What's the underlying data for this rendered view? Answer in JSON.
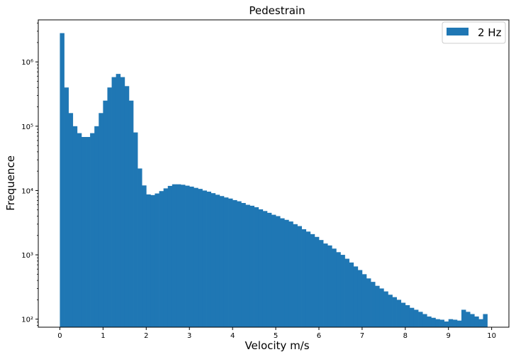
{
  "chart_data": {
    "type": "bar",
    "title": "Pedestrain",
    "xlabel": "Velocity m/s",
    "ylabel": "Frequence",
    "yscale": "log",
    "xlim": [
      -0.5,
      10.4
    ],
    "ylim": [
      75,
      4500000
    ],
    "xticks": [
      0,
      1,
      2,
      3,
      4,
      5,
      6,
      7,
      8,
      9,
      10
    ],
    "xtick_labels": [
      "0",
      "1",
      "2",
      "3",
      "4",
      "5",
      "6",
      "7",
      "8",
      "9",
      "10"
    ],
    "yticks": [
      100,
      1000,
      10000,
      100000,
      1000000
    ],
    "ytick_labels": [
      "10²",
      "10³",
      "10⁴",
      "10⁵",
      "10⁶"
    ],
    "grid": false,
    "legend_position": "top-right",
    "bin_width": 0.1,
    "series": [
      {
        "name": "2 Hz",
        "color": "#1f77b4",
        "bin_starts": [
          0.0,
          0.1,
          0.2,
          0.3,
          0.4,
          0.5,
          0.6,
          0.7,
          0.8,
          0.9,
          1.0,
          1.1,
          1.2,
          1.3,
          1.4,
          1.5,
          1.6,
          1.7,
          1.8,
          1.9,
          2.0,
          2.1,
          2.2,
          2.3,
          2.4,
          2.5,
          2.6,
          2.7,
          2.8,
          2.9,
          3.0,
          3.1,
          3.2,
          3.3,
          3.4,
          3.5,
          3.6,
          3.7,
          3.8,
          3.9,
          4.0,
          4.1,
          4.2,
          4.3,
          4.4,
          4.5,
          4.6,
          4.7,
          4.8,
          4.9,
          5.0,
          5.1,
          5.2,
          5.3,
          5.4,
          5.5,
          5.6,
          5.7,
          5.8,
          5.9,
          6.0,
          6.1,
          6.2,
          6.3,
          6.4,
          6.5,
          6.6,
          6.7,
          6.8,
          6.9,
          7.0,
          7.1,
          7.2,
          7.3,
          7.4,
          7.5,
          7.6,
          7.7,
          7.8,
          7.9,
          8.0,
          8.1,
          8.2,
          8.3,
          8.4,
          8.5,
          8.6,
          8.7,
          8.8,
          8.9,
          9.0,
          9.1,
          9.2,
          9.3,
          9.4,
          9.5,
          9.6,
          9.7,
          9.8
        ],
        "values": [
          2800000,
          400000,
          160000,
          100000,
          78000,
          68000,
          68000,
          78000,
          100000,
          160000,
          250000,
          400000,
          580000,
          650000,
          580000,
          420000,
          250000,
          80000,
          22000,
          12000,
          8700,
          8500,
          9000,
          9800,
          10800,
          11800,
          12500,
          12500,
          12300,
          11900,
          11500,
          11000,
          10600,
          10000,
          9600,
          9100,
          8600,
          8200,
          7800,
          7500,
          7100,
          6800,
          6400,
          6000,
          5800,
          5500,
          5100,
          4800,
          4500,
          4200,
          4000,
          3700,
          3500,
          3300,
          3000,
          2800,
          2500,
          2300,
          2100,
          1900,
          1700,
          1500,
          1400,
          1250,
          1100,
          1000,
          870,
          760,
          660,
          580,
          500,
          430,
          380,
          330,
          300,
          270,
          240,
          220,
          200,
          180,
          165,
          150,
          140,
          130,
          120,
          110,
          105,
          100,
          98,
          92,
          100,
          98,
          95,
          140,
          130,
          120,
          110,
          100,
          120
        ]
      }
    ]
  }
}
